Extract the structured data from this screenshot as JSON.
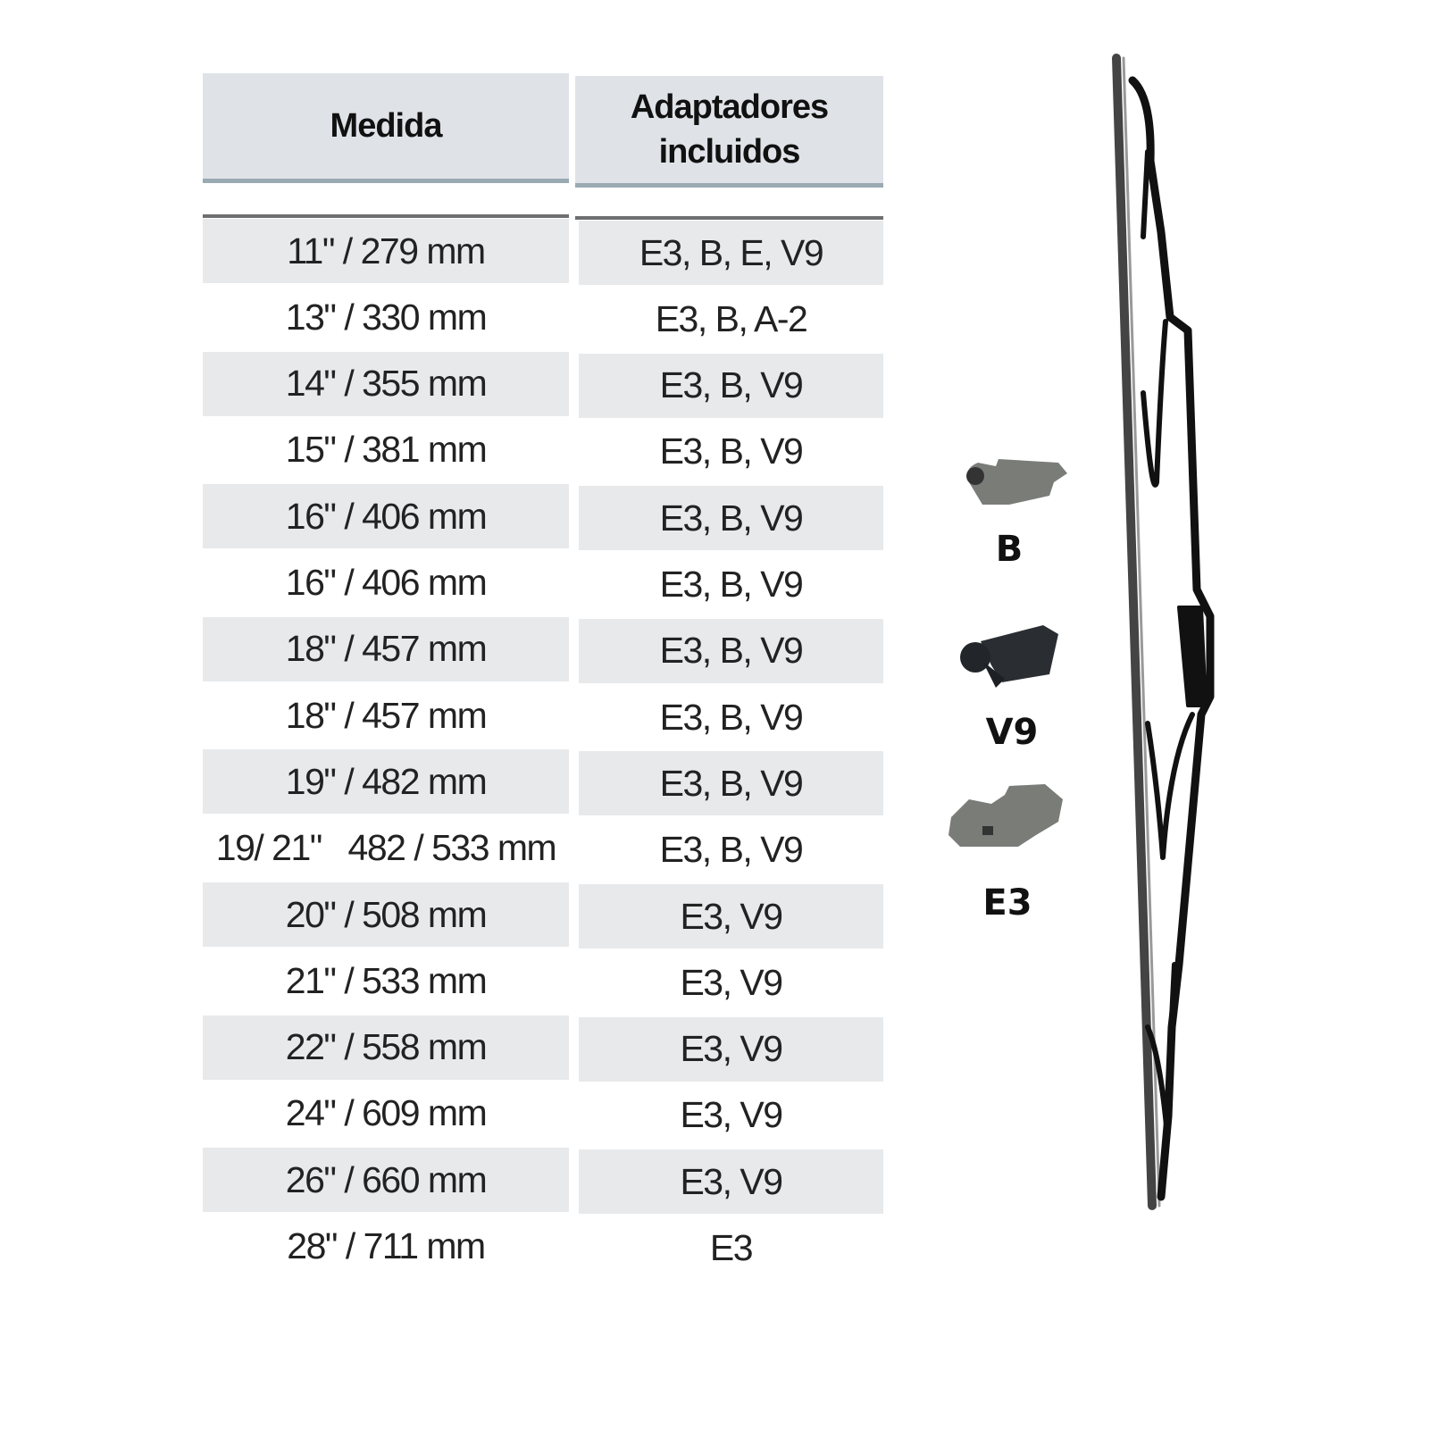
{
  "table": {
    "headers": [
      "Medida",
      "Adaptadores incluidos"
    ],
    "header_lines": [
      [
        "Medida"
      ],
      [
        "Adaptadores",
        "incluidos"
      ]
    ],
    "rows": [
      {
        "size": "11\" / 279 mm",
        "adapters": "E3, B, E, V9"
      },
      {
        "size": "13\" / 330 mm",
        "adapters": "E3, B, A-2"
      },
      {
        "size": "14\" / 355 mm",
        "adapters": "E3, B, V9"
      },
      {
        "size": "15\" / 381 mm",
        "adapters": "E3, B, V9"
      },
      {
        "size": "16\" / 406 mm",
        "adapters": "E3, B, V9"
      },
      {
        "size": "16\" / 406 mm",
        "adapters": "E3, B, V9"
      },
      {
        "size": "18\" / 457 mm",
        "adapters": "E3, B, V9"
      },
      {
        "size": "18\" / 457 mm",
        "adapters": "E3, B, V9"
      },
      {
        "size": "19\" / 482 mm",
        "adapters": "E3, B, V9"
      },
      {
        "size": "19/ 21\"   482 / 533 mm",
        "adapters": "E3, B, V9"
      },
      {
        "size": "20\" / 508 mm",
        "adapters": "E3, V9"
      },
      {
        "size": "21\" / 533 mm",
        "adapters": "E3, V9"
      },
      {
        "size": "22\" / 558 mm",
        "adapters": "E3, V9"
      },
      {
        "size": "24\" / 609 mm",
        "adapters": "E3, V9"
      },
      {
        "size": "26\" / 660 mm",
        "adapters": "E3, V9"
      },
      {
        "size": "28\" / 711 mm",
        "adapters": "E3"
      }
    ]
  },
  "adapters": [
    {
      "label": "B",
      "icon": "adapter-b-image",
      "color": "#7a7c78"
    },
    {
      "label": "V9",
      "icon": "adapter-v9-image",
      "color": "#2a2e33"
    },
    {
      "label": "E3",
      "icon": "adapter-e3-image",
      "color": "#7a7c78"
    }
  ],
  "colors": {
    "header_bg": "#dfe3e8",
    "header_rule": "#9aaab3",
    "stripe": "#e7e9eb"
  }
}
